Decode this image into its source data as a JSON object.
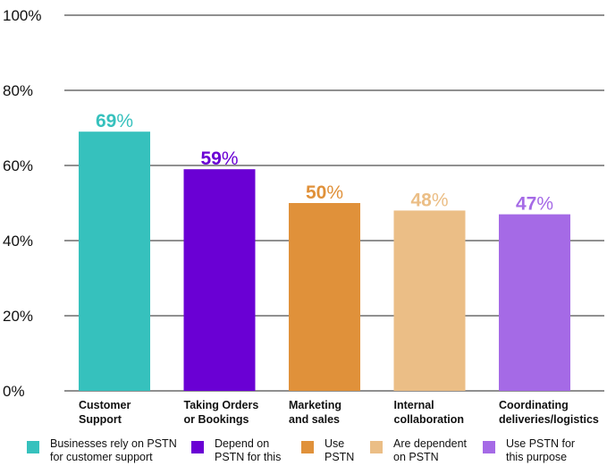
{
  "chart_data": {
    "type": "bar",
    "categories": [
      "Customer\nSupport",
      "Taking Orders\nor Bookings",
      "Marketing\nand sales",
      "Internal\ncollaboration",
      "Coordinating\ndeliveries/logistics"
    ],
    "values": [
      69,
      59,
      50,
      48,
      47
    ],
    "value_labels": [
      "69",
      "59",
      "50",
      "48",
      "47"
    ],
    "value_suffix": "%",
    "colors": [
      "#36c1bd",
      "#6a00d4",
      "#e0913a",
      "#ebbe86",
      "#a56ae6"
    ],
    "ylim": [
      0,
      100
    ],
    "yticks": [
      {
        "value": 0,
        "label": "0%"
      },
      {
        "value": 20,
        "label": "20%"
      },
      {
        "value": 40,
        "label": "40%"
      },
      {
        "value": 60,
        "label": "60%"
      },
      {
        "value": 80,
        "label": "80%"
      },
      {
        "value": 100,
        "label": "100%"
      }
    ],
    "grid": true,
    "title": "",
    "xlabel": "",
    "ylabel": "",
    "legend_position": "bottom",
    "legend": [
      {
        "label": "Businesses rely on PSTN\nfor customer support",
        "color": "#36c1bd"
      },
      {
        "label": "Depend on\nPSTN for this",
        "color": "#6a00d4"
      },
      {
        "label": "Use\nPSTN",
        "color": "#e0913a"
      },
      {
        "label": "Are dependent\non PSTN",
        "color": "#ebbe86"
      },
      {
        "label": "Use PSTN for\nthis purpose",
        "color": "#a56ae6"
      }
    ]
  }
}
